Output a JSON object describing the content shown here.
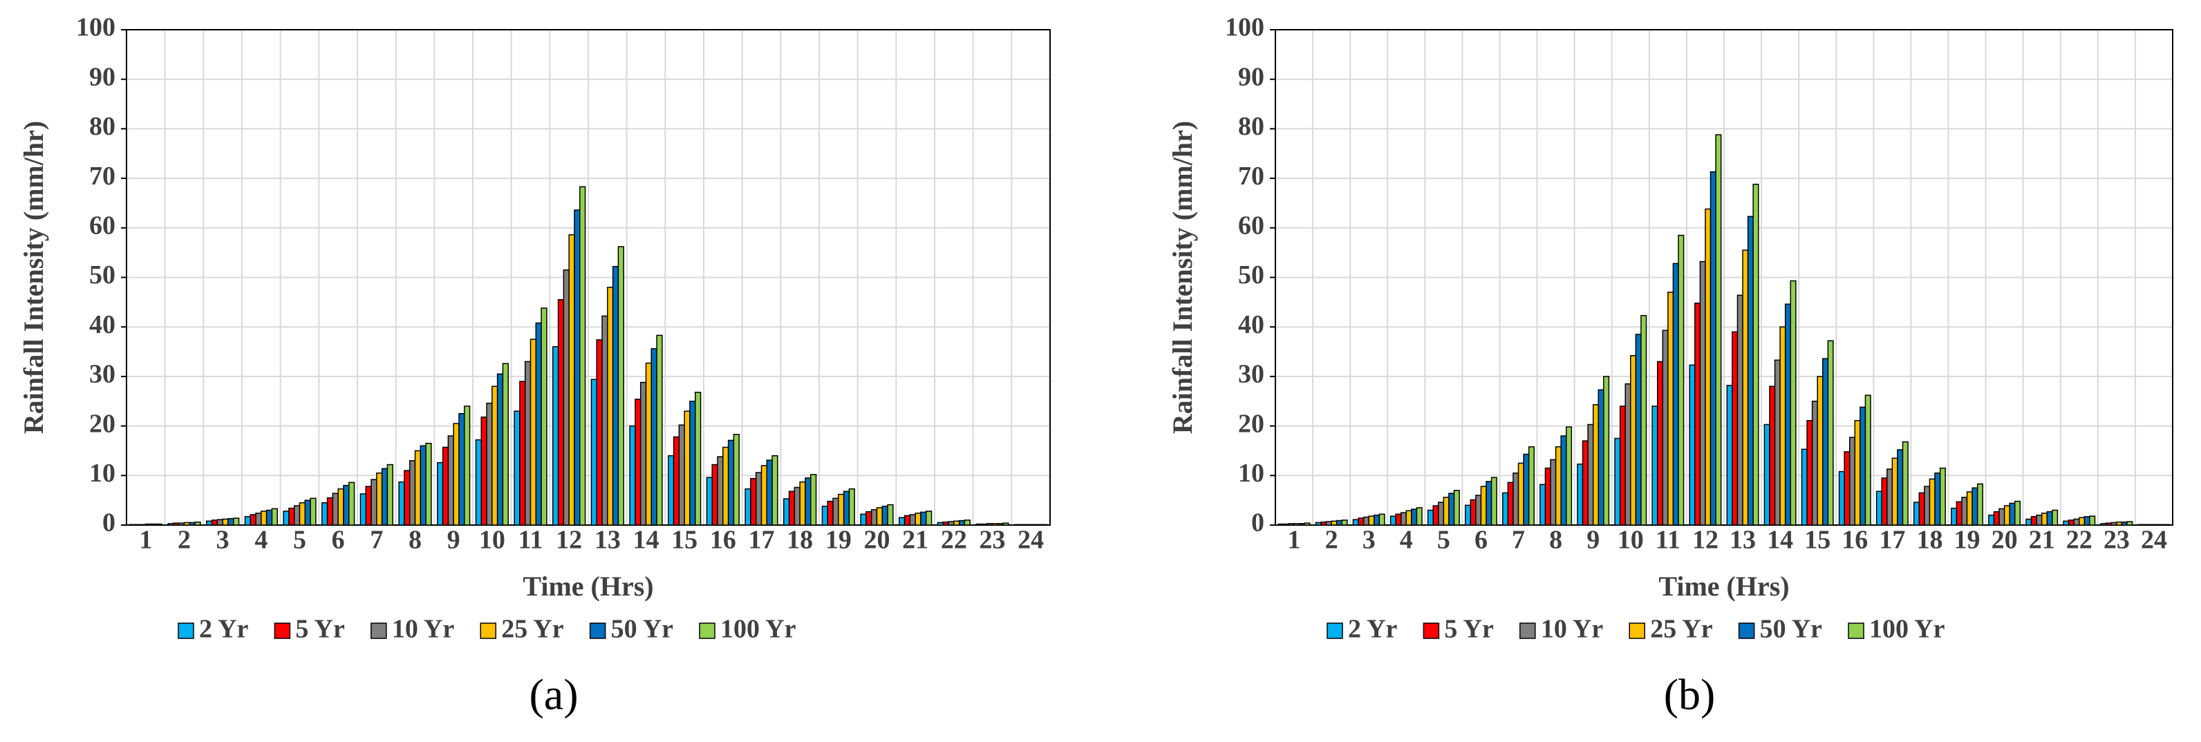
{
  "chart_data": [
    {
      "type": "bar",
      "title": "(a)",
      "xlabel": "Time (Hrs)",
      "ylabel": "Rainfall Intensity (mm/hr)",
      "categories": [
        "1",
        "2",
        "3",
        "4",
        "5",
        "6",
        "7",
        "8",
        "9",
        "10",
        "11",
        "12",
        "13",
        "14",
        "15",
        "16",
        "17",
        "18",
        "19",
        "20",
        "21",
        "22",
        "23",
        "24"
      ],
      "ylim": [
        0,
        100
      ],
      "yticks": [
        0,
        10,
        20,
        30,
        40,
        50,
        60,
        70,
        80,
        90,
        100
      ],
      "grid": true,
      "legend": "bottom",
      "series": [
        {
          "name": "2 Yr",
          "color": "#00b0f0",
          "values": [
            0.1,
            0.3,
            0.8,
            1.7,
            2.8,
            4.5,
            6.3,
            8.7,
            12.6,
            17.2,
            23,
            36,
            29.4,
            20,
            14,
            9.6,
            7.3,
            5.3,
            3.8,
            2.2,
            1.5,
            0.5,
            0.2,
            0.1
          ]
        },
        {
          "name": "5 Yr",
          "color": "#ff0000",
          "values": [
            0.1,
            0.4,
            1.0,
            2.1,
            3.4,
            5.5,
            7.8,
            11,
            15.7,
            21.8,
            29,
            45.5,
            37.4,
            25.4,
            17.8,
            12.2,
            9.4,
            6.8,
            4.8,
            2.7,
            1.9,
            0.6,
            0.2,
            0.1
          ]
        },
        {
          "name": "10 Yr",
          "color": "#808080",
          "values": [
            0.1,
            0.4,
            1.1,
            2.4,
            3.9,
            6.4,
            9.2,
            13,
            18,
            24.6,
            33,
            51.5,
            42.2,
            28.8,
            20.2,
            13.8,
            10.6,
            7.6,
            5.4,
            3.1,
            2.1,
            0.7,
            0.3,
            0.1
          ]
        },
        {
          "name": "25 Yr",
          "color": "#ffc000",
          "values": [
            0.2,
            0.5,
            1.2,
            2.8,
            4.5,
            7.3,
            10.5,
            15,
            20.5,
            28,
            37.5,
            58.6,
            48,
            32.7,
            23,
            15.7,
            12,
            8.7,
            6.2,
            3.5,
            2.4,
            0.8,
            0.3,
            0.1
          ]
        },
        {
          "name": "50 Yr",
          "color": "#0070c0",
          "values": [
            0.2,
            0.5,
            1.3,
            3.0,
            5.0,
            8.0,
            11.4,
            16,
            22.5,
            30.5,
            40.8,
            63.6,
            52.2,
            35.6,
            25,
            17.1,
            13.1,
            9.5,
            6.8,
            3.8,
            2.6,
            0.9,
            0.3,
            0.1
          ]
        },
        {
          "name": "100 Yr",
          "color": "#92d050",
          "values": [
            0.2,
            0.6,
            1.4,
            3.3,
            5.4,
            8.6,
            12.2,
            16.5,
            24,
            32.6,
            43.8,
            68.3,
            56.2,
            38.3,
            26.8,
            18.3,
            14,
            10.2,
            7.3,
            4.1,
            2.8,
            1.0,
            0.4,
            0.1
          ]
        }
      ]
    },
    {
      "type": "bar",
      "title": "(b)",
      "xlabel": "Time (Hrs)",
      "ylabel": "Rainfall Intensity (mm/hr)",
      "categories": [
        "1",
        "2",
        "3",
        "4",
        "5",
        "6",
        "7",
        "8",
        "9",
        "10",
        "11",
        "12",
        "13",
        "14",
        "15",
        "16",
        "17",
        "18",
        "19",
        "20",
        "21",
        "22",
        "23",
        "24"
      ],
      "ylim": [
        0,
        100
      ],
      "yticks": [
        0,
        10,
        20,
        30,
        40,
        50,
        60,
        70,
        80,
        90,
        100
      ],
      "grid": true,
      "legend": "bottom",
      "series": [
        {
          "name": "2 Yr",
          "color": "#00b0f0",
          "values": [
            0.2,
            0.5,
            1.1,
            1.8,
            3.0,
            4.0,
            6.5,
            8.2,
            12.3,
            17.5,
            24,
            32.3,
            28.2,
            20.3,
            15.3,
            10.8,
            6.8,
            4.6,
            3.4,
            2.0,
            1.2,
            0.8,
            0.3,
            0.1
          ]
        },
        {
          "name": "5 Yr",
          "color": "#ff0000",
          "values": [
            0.2,
            0.6,
            1.4,
            2.2,
            3.9,
            5.1,
            8.6,
            11.5,
            17,
            24,
            33,
            44.8,
            39,
            28,
            21.1,
            14.8,
            9.5,
            6.5,
            4.7,
            2.7,
            1.7,
            1.0,
            0.4,
            0.1
          ]
        },
        {
          "name": "10 Yr",
          "color": "#808080",
          "values": [
            0.3,
            0.7,
            1.6,
            2.5,
            4.6,
            6.0,
            10.5,
            13.2,
            20.3,
            28.5,
            39.3,
            53.2,
            46.4,
            33.3,
            25,
            17.7,
            11.3,
            7.8,
            5.6,
            3.3,
            2.0,
            1.2,
            0.5,
            0.1
          ]
        },
        {
          "name": "25 Yr",
          "color": "#ffc000",
          "values": [
            0.3,
            0.8,
            1.8,
            2.9,
            5.6,
            7.8,
            12.5,
            15.8,
            24.3,
            34.2,
            47,
            63.8,
            55.5,
            40,
            30,
            21.1,
            13.5,
            9.3,
            6.7,
            3.9,
            2.4,
            1.5,
            0.6,
            0.1
          ]
        },
        {
          "name": "50 Yr",
          "color": "#0070c0",
          "values": [
            0.3,
            0.9,
            2.0,
            3.2,
            6.4,
            8.8,
            14.3,
            18,
            27.3,
            38.5,
            52.8,
            71.3,
            62.3,
            44.6,
            33.6,
            23.8,
            15.2,
            10.5,
            7.5,
            4.4,
            2.7,
            1.7,
            0.6,
            0.1
          ]
        },
        {
          "name": "100 Yr",
          "color": "#92d050",
          "values": [
            0.4,
            1.0,
            2.2,
            3.5,
            7.0,
            9.6,
            15.8,
            19.8,
            30,
            42.3,
            58.5,
            78.8,
            68.8,
            49.3,
            37.2,
            26.2,
            16.8,
            11.5,
            8.3,
            4.8,
            3.0,
            1.8,
            0.7,
            0.1
          ]
        }
      ]
    }
  ]
}
